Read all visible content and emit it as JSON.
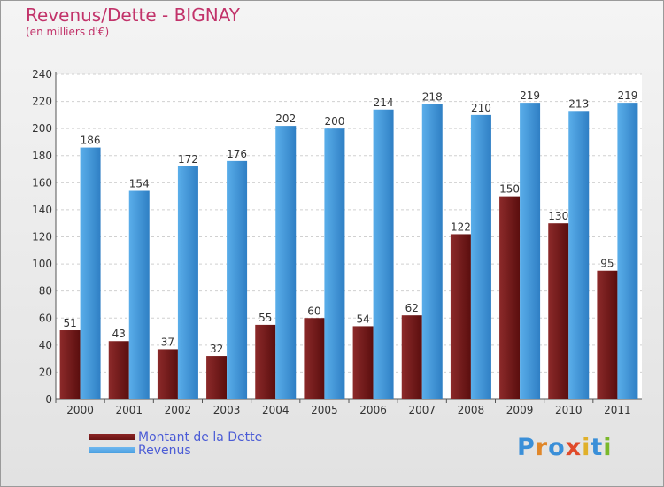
{
  "title": "Revenus/Dette - BIGNAY",
  "subtitle": "(en milliers d'€)",
  "legend": [
    {
      "label": "Montant de la Dette",
      "color": "#6b1414"
    },
    {
      "label": "Revenus",
      "color": "#4a9fe0"
    }
  ],
  "logo": {
    "text": "Proxiti",
    "letters": [
      {
        "ch": "P",
        "color": "#3a8fd8"
      },
      {
        "ch": "r",
        "color": "#e0872a"
      },
      {
        "ch": "o",
        "color": "#3a8fd8"
      },
      {
        "ch": "x",
        "color": "#e04a2a"
      },
      {
        "ch": "i",
        "color": "#e0b02a"
      },
      {
        "ch": "t",
        "color": "#3a8fd8"
      },
      {
        "ch": "i",
        "color": "#7ab82a"
      }
    ]
  },
  "chart_data": {
    "type": "bar",
    "title": "Revenus/Dette - BIGNAY",
    "subtitle": "(en milliers d'€)",
    "categories": [
      "2000",
      "2001",
      "2002",
      "2003",
      "2004",
      "2005",
      "2006",
      "2007",
      "2008",
      "2009",
      "2010",
      "2011"
    ],
    "series": [
      {
        "name": "Montant de la Dette",
        "color": "#6b1414",
        "values": [
          51,
          43,
          37,
          32,
          55,
          60,
          54,
          62,
          122,
          150,
          130,
          95
        ]
      },
      {
        "name": "Revenus",
        "color": "#4a9fe0",
        "values": [
          186,
          154,
          172,
          176,
          202,
          200,
          214,
          218,
          210,
          219,
          213,
          219
        ]
      }
    ],
    "ylim": [
      0,
      240
    ],
    "yticks": [
      0,
      20,
      40,
      60,
      80,
      100,
      120,
      140,
      160,
      180,
      200,
      220,
      240
    ],
    "grid": true,
    "legend_position": "bottom-left"
  }
}
